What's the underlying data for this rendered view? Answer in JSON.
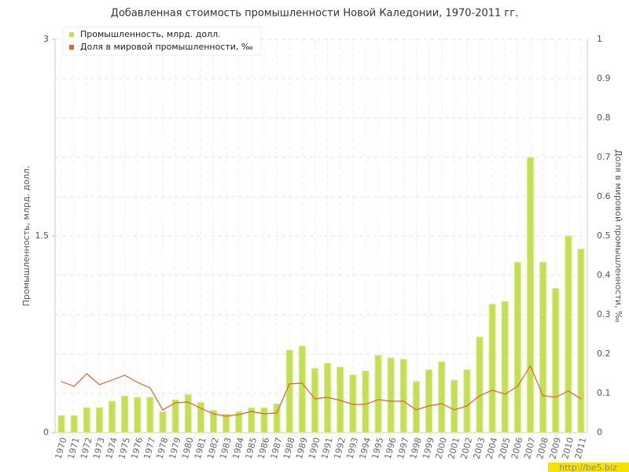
{
  "chart_data": {
    "type": "bar_line",
    "title": "Добавленная стоимость промышленности Новой Каледонии, 1970-2011 гг.",
    "y_label": "Промышленность, млрд. долл.",
    "y2_label": "Доля в мировой промышленности, ‰",
    "watermark": "http://be5.biz",
    "categories": [
      "1970",
      "1971",
      "1972",
      "1973",
      "1974",
      "1975",
      "1976",
      "1977",
      "1978",
      "1979",
      "1980",
      "1981",
      "1982",
      "1983",
      "1984",
      "1985",
      "1986",
      "1987",
      "1988",
      "1989",
      "1990",
      "1991",
      "1992",
      "1993",
      "1994",
      "1995",
      "1996",
      "1997",
      "1998",
      "1999",
      "2000",
      "2001",
      "2002",
      "2003",
      "2004",
      "2005",
      "2006",
      "2007",
      "2008",
      "2009",
      "2010",
      "2011"
    ],
    "series": [
      {
        "name": "Промышленность, млрд. долл.",
        "type": "bar",
        "color": "#c3df55",
        "values": [
          0.13,
          0.13,
          0.19,
          0.19,
          0.24,
          0.28,
          0.27,
          0.27,
          0.16,
          0.25,
          0.29,
          0.23,
          0.17,
          0.14,
          0.16,
          0.19,
          0.19,
          0.22,
          0.63,
          0.66,
          0.49,
          0.53,
          0.5,
          0.44,
          0.47,
          0.59,
          0.57,
          0.56,
          0.39,
          0.48,
          0.54,
          0.4,
          0.48,
          0.73,
          0.98,
          1.0,
          1.3,
          2.1,
          1.3,
          1.1,
          1.5,
          1.4
        ]
      },
      {
        "name": "Доля в мировой промышленности, ‰",
        "type": "line",
        "axis": "y2",
        "color": "#e0622e",
        "values": [
          0.13,
          0.118,
          0.15,
          0.122,
          0.134,
          0.146,
          0.128,
          0.114,
          0.058,
          0.076,
          0.078,
          0.062,
          0.048,
          0.042,
          0.046,
          0.054,
          0.048,
          0.05,
          0.124,
          0.126,
          0.086,
          0.09,
          0.082,
          0.072,
          0.072,
          0.084,
          0.08,
          0.08,
          0.058,
          0.068,
          0.074,
          0.058,
          0.068,
          0.094,
          0.108,
          0.098,
          0.118,
          0.17,
          0.094,
          0.09,
          0.106,
          0.086
        ]
      }
    ],
    "ylim": [
      0,
      3
    ],
    "yticks": [
      0,
      1.5,
      3
    ],
    "y2lim": [
      0,
      1
    ],
    "y2ticks": [
      0,
      0.1,
      0.2,
      0.3,
      0.4,
      0.5,
      0.6,
      0.7,
      0.8,
      0.9,
      1
    ],
    "grid": true
  }
}
